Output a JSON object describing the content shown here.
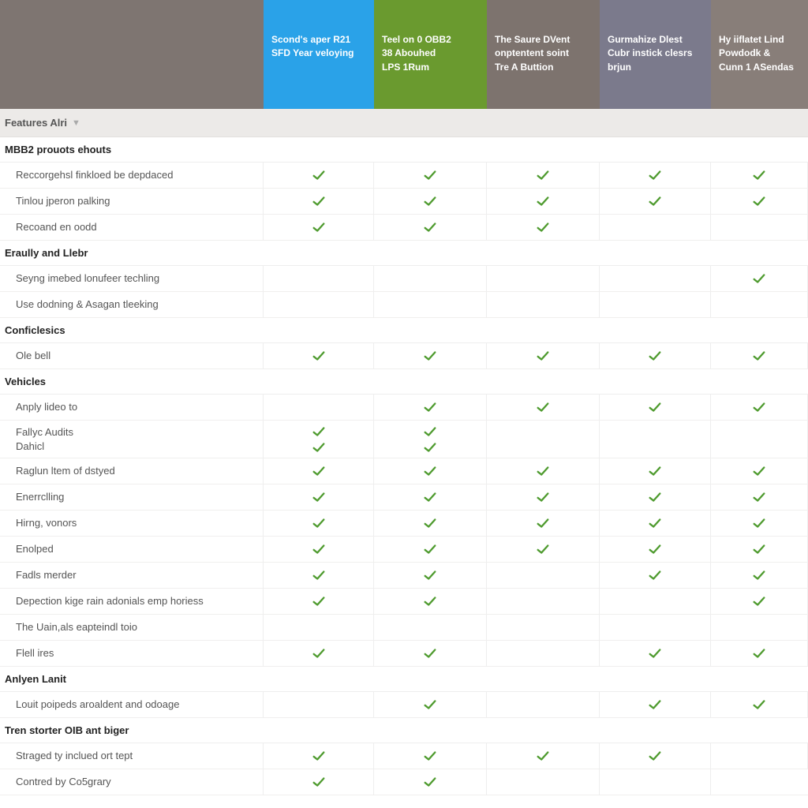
{
  "colors": {
    "check": "#4f9b2f",
    "header_empty": "#7e7571",
    "header_cols": [
      "#2aa2e8",
      "#6a9a2f",
      "#7d736e",
      "#7b7a8c",
      "#887e79"
    ],
    "filter_bg": "#eceae8",
    "row_border": "#f0efee"
  },
  "columns": [
    {
      "line1": "Scond's aper R21",
      "line2": "SFD Year veloying",
      "line3": ""
    },
    {
      "line1": "Teel on 0 OBB2",
      "line2": "38 Abouhed",
      "line3": "LPS 1Rum"
    },
    {
      "line1": "The Saure DVent",
      "line2": "onptentent soint",
      "line3": "Tre A Buttion"
    },
    {
      "line1": "Gurmahize Dlest",
      "line2": "Cubr instick clesrs",
      "line3": "brjun"
    },
    {
      "line1": "Hy iiflatet Lind",
      "line2": "Powdodk &",
      "line3": "Cunn 1 ASendas"
    }
  ],
  "filter_label": "Features Alri",
  "sections": [
    {
      "title": "MBB2 prouots ehouts",
      "rows": [
        {
          "label": "Reccorgehsl finkloed be depdaced",
          "checks": [
            true,
            true,
            true,
            true,
            true
          ]
        },
        {
          "label": "Tinlou jperon palking",
          "checks": [
            true,
            true,
            true,
            true,
            true
          ]
        },
        {
          "label": "Recoand en oodd",
          "checks": [
            true,
            true,
            true,
            false,
            false
          ]
        }
      ]
    },
    {
      "title": "Eraully and Llebr",
      "rows": [
        {
          "label": "Seyng imebed lonufeer techling",
          "checks": [
            false,
            false,
            false,
            false,
            true
          ]
        },
        {
          "label": "Use dodning & Asagan tleeking",
          "checks": [
            false,
            false,
            false,
            false,
            false
          ]
        }
      ]
    },
    {
      "title": "Conficlesics",
      "rows": [
        {
          "label": "Ole bell",
          "checks": [
            true,
            true,
            true,
            true,
            true
          ]
        }
      ]
    },
    {
      "title": "Vehicles",
      "rows": [
        {
          "label": "Anply lideo to",
          "checks": [
            false,
            true,
            true,
            true,
            true
          ]
        },
        {
          "label": "Fallyc Audits\nDahicl",
          "checks": [
            true,
            true,
            false,
            false,
            false
          ],
          "double": true
        },
        {
          "label": "Raglun ltem of dstyed",
          "checks": [
            true,
            true,
            true,
            true,
            true
          ]
        },
        {
          "label": "Enerrclling",
          "checks": [
            true,
            true,
            true,
            true,
            true
          ]
        },
        {
          "label": "Hirng, vonors",
          "checks": [
            true,
            true,
            true,
            true,
            true
          ]
        },
        {
          "label": "Enolped",
          "checks": [
            true,
            true,
            true,
            true,
            true
          ]
        },
        {
          "label": "Fadls merder",
          "checks": [
            true,
            true,
            false,
            true,
            true
          ]
        },
        {
          "label": "Depection kige rain adonials emp horiess",
          "checks": [
            true,
            true,
            false,
            false,
            true
          ]
        },
        {
          "label": "The Uain,als eapteindl toio",
          "checks": [
            false,
            false,
            false,
            false,
            false
          ]
        },
        {
          "label": "Flell ires",
          "checks": [
            true,
            true,
            false,
            true,
            true
          ]
        }
      ]
    },
    {
      "title": "Anlyen Lanit",
      "rows": [
        {
          "label": "Louit poipeds aroaldent and odoage",
          "checks": [
            false,
            true,
            false,
            true,
            true
          ]
        }
      ]
    },
    {
      "title": "Tren storter OIB ant biger",
      "rows": [
        {
          "label": "Straged ty inclued ort tept",
          "checks": [
            true,
            true,
            true,
            true,
            false
          ]
        },
        {
          "label": "Contred by Co5grary",
          "checks": [
            true,
            true,
            false,
            false,
            false
          ]
        }
      ]
    }
  ]
}
